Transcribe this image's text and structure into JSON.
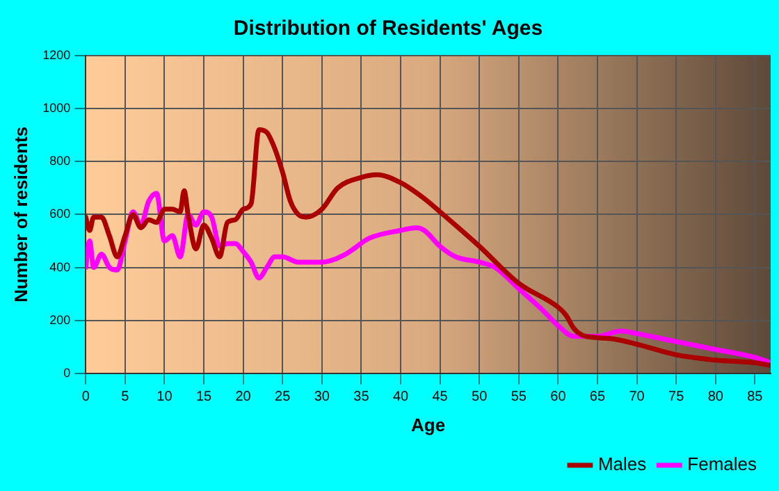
{
  "chart_data": {
    "type": "line",
    "title": "Distribution of Residents' Ages",
    "xlabel": "Age",
    "ylabel": "Number of residents",
    "xlim": [
      0,
      87
    ],
    "xticks": [
      0,
      5,
      10,
      15,
      20,
      25,
      30,
      35,
      40,
      45,
      50,
      55,
      60,
      65,
      70,
      75,
      80,
      85
    ],
    "ylim": [
      0,
      1200
    ],
    "yticks": [
      0,
      200,
      400,
      600,
      800,
      1000,
      1200
    ],
    "grid": true,
    "legend": "bottom right",
    "marker": "none",
    "line_style": "solid",
    "series": [
      {
        "name": "Males",
        "color": "#aa0000",
        "x": [
          0,
          0.5,
          1,
          2,
          3,
          4,
          5,
          6,
          7,
          8,
          9,
          10,
          11,
          12,
          12.5,
          13,
          14,
          15,
          16,
          17,
          18,
          19,
          20,
          21,
          22,
          23,
          24,
          25,
          26,
          27,
          28,
          30,
          32,
          35,
          37,
          40,
          43,
          45,
          50,
          55,
          60,
          61,
          62,
          63,
          65,
          67,
          70,
          75,
          80,
          85,
          87
        ],
        "values": [
          590,
          540,
          590,
          590,
          520,
          440,
          520,
          600,
          550,
          580,
          570,
          620,
          620,
          610,
          690,
          600,
          470,
          560,
          510,
          440,
          570,
          580,
          620,
          640,
          920,
          910,
          850,
          760,
          650,
          600,
          590,
          620,
          700,
          740,
          750,
          720,
          660,
          610,
          480,
          340,
          250,
          220,
          170,
          145,
          135,
          130,
          110,
          70,
          50,
          40,
          30
        ]
      },
      {
        "name": "Females",
        "color": "#ff00ff",
        "x": [
          0,
          0.5,
          1,
          2,
          3,
          4,
          5,
          6,
          7,
          8,
          9,
          10,
          11,
          12,
          13,
          14,
          15,
          16,
          17,
          18,
          19,
          20,
          21,
          22,
          23,
          24,
          25,
          27,
          30,
          33,
          36,
          40,
          42,
          43,
          45,
          47,
          50,
          52,
          55,
          58,
          60,
          62,
          65,
          68,
          70,
          75,
          80,
          85,
          87
        ],
        "values": [
          400,
          500,
          400,
          450,
          400,
          390,
          500,
          610,
          560,
          650,
          680,
          500,
          520,
          440,
          600,
          560,
          610,
          590,
          480,
          490,
          490,
          460,
          420,
          360,
          400,
          440,
          440,
          420,
          420,
          450,
          510,
          540,
          550,
          540,
          480,
          440,
          420,
          400,
          320,
          240,
          180,
          140,
          140,
          160,
          150,
          120,
          90,
          60,
          40
        ]
      }
    ]
  }
}
